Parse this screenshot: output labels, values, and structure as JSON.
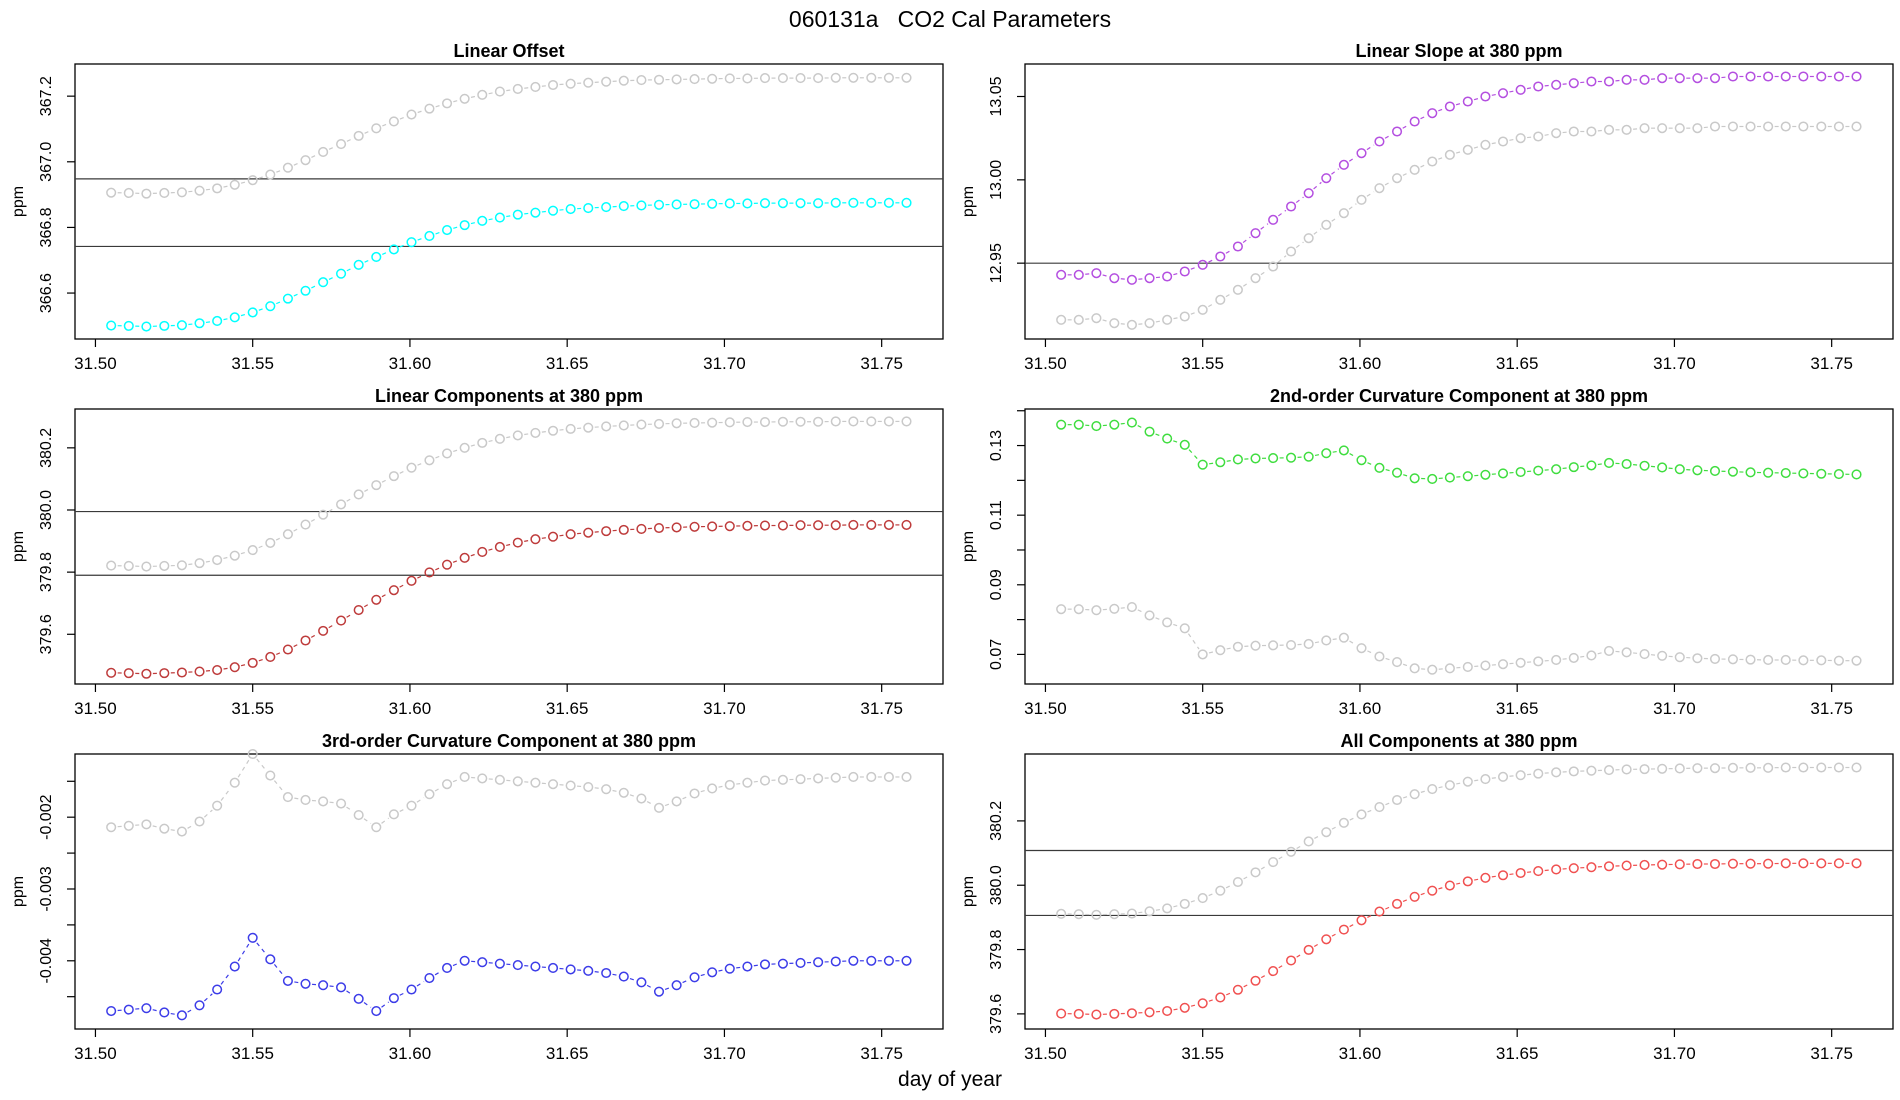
{
  "chart_data": {
    "type": "scatter",
    "main_title": "060131a   CO2 Cal Parameters",
    "xlabel": "day of year",
    "legend_position": "none",
    "grid": false,
    "marker": "open-circle",
    "line_style": "dashed",
    "xlim": [
      31.4935,
      31.7695
    ],
    "xticks": [
      31.5,
      31.55,
      31.6,
      31.65,
      31.7,
      31.75
    ],
    "xtick_labels": [
      "31.50",
      "31.55",
      "31.60",
      "31.65",
      "31.70",
      "31.75"
    ],
    "x": [
      31.505,
      31.5106,
      31.5162,
      31.5219,
      31.5275,
      31.5331,
      31.5387,
      31.5443,
      31.55,
      31.5556,
      31.5612,
      31.5668,
      31.5724,
      31.5781,
      31.5837,
      31.5893,
      31.5949,
      31.6005,
      31.6062,
      31.6118,
      31.6174,
      31.623,
      31.6286,
      31.6343,
      31.6399,
      31.6455,
      31.6511,
      31.6567,
      31.6624,
      31.668,
      31.6736,
      31.6792,
      31.6848,
      31.6905,
      31.6961,
      31.7017,
      31.7073,
      31.7129,
      31.7186,
      31.7242,
      31.7298,
      31.7354,
      31.741,
      31.7467,
      31.7523,
      31.7579
    ],
    "panels": [
      {
        "title": "Linear Offset",
        "ylabel": "ppm",
        "ylim": [
          366.46,
          367.298
        ],
        "yticks": [
          {
            "v": 367.2,
            "label": "367.2"
          },
          {
            "v": 367.0,
            "label": "367.0"
          },
          {
            "v": 366.8,
            "label": "366.8"
          },
          {
            "v": 366.6,
            "label": "366.6"
          }
        ],
        "minor_yticks": [],
        "hlines": [
          366.948,
          366.742
        ],
        "series": [
          {
            "color_name": "gray",
            "color": "#C9C9C9",
            "values": [
              366.906,
              366.905,
              366.903,
              366.905,
              366.907,
              366.912,
              366.919,
              366.93,
              366.944,
              366.961,
              366.982,
              367.005,
              367.03,
              367.054,
              367.079,
              367.102,
              367.123,
              367.144,
              367.162,
              367.178,
              367.192,
              367.204,
              367.214,
              367.222,
              367.228,
              367.234,
              367.238,
              367.241,
              367.244,
              367.247,
              367.249,
              367.25,
              367.251,
              367.252,
              367.253,
              367.254,
              367.254,
              367.255,
              367.255,
              367.255,
              367.255,
              367.256,
              367.256,
              367.256,
              367.256,
              367.256
            ]
          },
          {
            "color_name": "cyan",
            "color": "#00FFFF",
            "values": [
              366.501,
              366.5,
              366.498,
              366.5,
              366.502,
              366.508,
              366.515,
              366.526,
              366.541,
              366.56,
              366.583,
              366.607,
              366.633,
              366.659,
              366.686,
              366.71,
              366.733,
              366.755,
              366.774,
              366.792,
              366.807,
              366.82,
              366.83,
              366.839,
              366.845,
              366.851,
              366.856,
              366.859,
              366.862,
              366.865,
              366.867,
              366.869,
              366.87,
              366.871,
              366.872,
              366.873,
              366.873,
              366.874,
              366.874,
              366.874,
              366.874,
              366.875,
              366.875,
              366.875,
              366.875,
              366.875
            ]
          }
        ]
      },
      {
        "title": "Linear Slope at 380 ppm",
        "ylabel": "ppm",
        "ylim": [
          12.9045,
          13.0695
        ],
        "yticks": [
          {
            "v": 13.05,
            "label": "13.05"
          },
          {
            "v": 13.0,
            "label": "13.00"
          },
          {
            "v": 12.95,
            "label": "12.95"
          }
        ],
        "minor_yticks": [],
        "hlines": [
          12.95
        ],
        "series": [
          {
            "color_name": "gray",
            "color": "#C9C9C9",
            "values": [
              12.916,
              12.916,
              12.917,
              12.914,
              12.913,
              12.914,
              12.916,
              12.918,
              12.922,
              12.928,
              12.934,
              12.941,
              12.948,
              12.957,
              12.965,
              12.973,
              12.98,
              12.988,
              12.995,
              13.001,
              13.006,
              13.011,
              13.015,
              13.018,
              13.021,
              13.023,
              13.025,
              13.026,
              13.028,
              13.029,
              13.029,
              13.03,
              13.03,
              13.031,
              13.031,
              13.031,
              13.031,
              13.032,
              13.032,
              13.032,
              13.032,
              13.032,
              13.032,
              13.032,
              13.032,
              13.032
            ]
          },
          {
            "color_name": "purple",
            "color": "#B44FE0",
            "values": [
              12.943,
              12.943,
              12.944,
              12.941,
              12.94,
              12.941,
              12.942,
              12.945,
              12.949,
              12.954,
              12.96,
              12.968,
              12.976,
              12.984,
              12.992,
              13.001,
              13.009,
              13.016,
              13.023,
              13.029,
              13.035,
              13.04,
              13.044,
              13.047,
              13.05,
              13.052,
              13.054,
              13.056,
              13.057,
              13.058,
              13.059,
              13.059,
              13.06,
              13.06,
              13.061,
              13.061,
              13.061,
              13.061,
              13.062,
              13.062,
              13.062,
              13.062,
              13.062,
              13.062,
              13.062,
              13.062
            ]
          }
        ]
      },
      {
        "title": "Linear Components at 380 ppm",
        "ylabel": "ppm",
        "ylim": [
          379.44,
          380.325
        ],
        "yticks": [
          {
            "v": 380.2,
            "label": "380.2"
          },
          {
            "v": 380.0,
            "label": "380.0"
          },
          {
            "v": 379.8,
            "label": "379.8"
          },
          {
            "v": 379.6,
            "label": "379.6"
          }
        ],
        "minor_yticks": [],
        "hlines": [
          379.995,
          379.79
        ],
        "series": [
          {
            "color_name": "gray",
            "color": "#C9C9C9",
            "values": [
              379.821,
              379.82,
              379.818,
              379.82,
              379.822,
              379.829,
              379.839,
              379.853,
              379.871,
              379.894,
              379.922,
              379.953,
              379.985,
              380.018,
              380.05,
              380.08,
              380.109,
              380.136,
              380.16,
              380.182,
              380.2,
              380.216,
              380.229,
              380.24,
              380.248,
              380.255,
              380.261,
              380.265,
              380.269,
              380.272,
              380.275,
              380.277,
              380.279,
              380.28,
              380.281,
              380.282,
              380.283,
              380.283,
              380.284,
              380.284,
              380.284,
              380.285,
              380.285,
              380.285,
              380.285,
              380.285
            ]
          },
          {
            "color_name": "dark-red",
            "color": "#BE3B3B",
            "values": [
              379.476,
              379.475,
              379.473,
              379.475,
              379.477,
              379.48,
              379.485,
              379.494,
              379.508,
              379.527,
              379.551,
              379.58,
              379.611,
              379.644,
              379.678,
              379.711,
              379.742,
              379.772,
              379.799,
              379.824,
              379.846,
              379.865,
              379.881,
              379.895,
              379.906,
              379.914,
              379.922,
              379.927,
              379.932,
              379.936,
              379.939,
              379.942,
              379.944,
              379.946,
              379.947,
              379.948,
              379.949,
              379.95,
              379.95,
              379.951,
              379.951,
              379.951,
              379.952,
              379.952,
              379.952,
              379.952
            ]
          }
        ]
      },
      {
        "title": "2nd-order Curvature Component at 380 ppm",
        "ylabel": "ppm",
        "ylim": [
          0.0615,
          0.1405
        ],
        "yticks": [
          {
            "v": 0.13,
            "label": "0.13"
          },
          {
            "v": 0.11,
            "label": "0.11"
          },
          {
            "v": 0.09,
            "label": "0.09"
          },
          {
            "v": 0.07,
            "label": "0.07"
          }
        ],
        "minor_yticks": [
          0.14,
          0.12,
          0.1,
          0.08
        ],
        "hlines": [],
        "series": [
          {
            "color_name": "gray",
            "color": "#C9C9C9",
            "values": [
              0.083,
              0.083,
              0.0827,
              0.0831,
              0.0836,
              0.0812,
              0.0792,
              0.0775,
              0.07,
              0.0712,
              0.0722,
              0.0725,
              0.0726,
              0.0727,
              0.073,
              0.074,
              0.0748,
              0.0718,
              0.0694,
              0.0678,
              0.066,
              0.0656,
              0.066,
              0.0664,
              0.0668,
              0.0672,
              0.0676,
              0.068,
              0.0684,
              0.069,
              0.0697,
              0.071,
              0.0706,
              0.0701,
              0.0696,
              0.0692,
              0.0689,
              0.0687,
              0.0686,
              0.0685,
              0.0684,
              0.0684,
              0.0683,
              0.0683,
              0.0682,
              0.0682
            ]
          },
          {
            "color_name": "green",
            "color": "#3FDD3F",
            "values": [
              0.136,
              0.136,
              0.1356,
              0.136,
              0.1366,
              0.134,
              0.132,
              0.1302,
              0.1245,
              0.1252,
              0.126,
              0.1263,
              0.1264,
              0.1265,
              0.1268,
              0.1278,
              0.1286,
              0.1258,
              0.1236,
              0.1222,
              0.1206,
              0.1204,
              0.1208,
              0.1212,
              0.1216,
              0.122,
              0.1224,
              0.1228,
              0.1232,
              0.1238,
              0.1243,
              0.125,
              0.1247,
              0.1242,
              0.1237,
              0.1232,
              0.1229,
              0.1227,
              0.1225,
              0.1223,
              0.1222,
              0.1221,
              0.122,
              0.1219,
              0.1218,
              0.1217
            ]
          }
        ]
      },
      {
        "title": "3rd-order Curvature Component at 380 ppm",
        "ylabel": "ppm",
        "ylim": [
          -0.00495,
          -0.00112
        ],
        "yticks": [
          {
            "v": -0.002,
            "label": "-0.002"
          },
          {
            "v": -0.003,
            "label": "-0.003"
          },
          {
            "v": -0.004,
            "label": "-0.004"
          }
        ],
        "minor_yticks": [
          -0.0015,
          -0.0025,
          -0.0035,
          -0.0045
        ],
        "hlines": [],
        "series": [
          {
            "color_name": "gray",
            "color": "#C9C9C9",
            "values": [
              -0.00214,
              -0.00212,
              -0.0021,
              -0.00216,
              -0.0022,
              -0.00206,
              -0.00184,
              -0.00152,
              -0.00112,
              -0.00142,
              -0.00172,
              -0.00176,
              -0.00178,
              -0.00181,
              -0.00197,
              -0.00214,
              -0.00196,
              -0.00184,
              -0.00168,
              -0.00154,
              -0.00144,
              -0.00146,
              -0.00148,
              -0.0015,
              -0.00152,
              -0.00154,
              -0.00156,
              -0.00158,
              -0.00161,
              -0.00166,
              -0.00174,
              -0.00187,
              -0.00178,
              -0.00167,
              -0.0016,
              -0.00155,
              -0.00152,
              -0.00149,
              -0.00148,
              -0.00147,
              -0.00146,
              -0.00145,
              -0.00144,
              -0.00144,
              -0.00144,
              -0.00144
            ]
          },
          {
            "color_name": "blue",
            "color": "#3C3CE8",
            "values": [
              -0.0047,
              -0.00468,
              -0.00466,
              -0.00472,
              -0.00476,
              -0.00462,
              -0.0044,
              -0.00408,
              -0.00368,
              -0.00398,
              -0.00428,
              -0.00432,
              -0.00434,
              -0.00437,
              -0.00453,
              -0.0047,
              -0.00452,
              -0.0044,
              -0.00424,
              -0.0041,
              -0.004,
              -0.00402,
              -0.00404,
              -0.00406,
              -0.00408,
              -0.0041,
              -0.00412,
              -0.00414,
              -0.00417,
              -0.00422,
              -0.0043,
              -0.00443,
              -0.00434,
              -0.00423,
              -0.00416,
              -0.00411,
              -0.00408,
              -0.00405,
              -0.00404,
              -0.00403,
              -0.00402,
              -0.00401,
              -0.004,
              -0.004,
              -0.004,
              -0.004
            ]
          }
        ]
      },
      {
        "title": "All Components at 380 ppm",
        "ylabel": "ppm",
        "ylim": [
          379.553,
          380.408
        ],
        "yticks": [
          {
            "v": 380.2,
            "label": "380.2"
          },
          {
            "v": 380.0,
            "label": "380.0"
          },
          {
            "v": 379.8,
            "label": "379.8"
          },
          {
            "v": 379.6,
            "label": "379.6"
          }
        ],
        "minor_yticks": [],
        "hlines": [
          380.108,
          379.906
        ],
        "series": [
          {
            "color_name": "gray",
            "color": "#C9C9C9",
            "values": [
              379.911,
              379.91,
              379.908,
              379.91,
              379.912,
              379.919,
              379.928,
              379.942,
              379.96,
              379.983,
              380.01,
              380.04,
              380.072,
              380.104,
              380.136,
              380.165,
              380.194,
              380.22,
              380.243,
              380.265,
              380.283,
              380.299,
              380.311,
              380.322,
              380.33,
              380.337,
              380.342,
              380.347,
              380.351,
              380.354,
              380.356,
              380.358,
              380.36,
              380.361,
              380.362,
              380.363,
              380.364,
              380.364,
              380.365,
              380.365,
              380.365,
              380.366,
              380.366,
              380.366,
              380.366,
              380.366
            ]
          },
          {
            "color_name": "red",
            "color": "#F05050",
            "values": [
              379.601,
              379.6,
              379.598,
              379.6,
              379.602,
              379.605,
              379.609,
              379.619,
              379.633,
              379.651,
              379.675,
              379.703,
              379.733,
              379.766,
              379.799,
              379.832,
              379.862,
              379.891,
              379.918,
              379.942,
              379.964,
              379.983,
              379.999,
              380.012,
              380.023,
              380.031,
              380.038,
              380.044,
              380.049,
              380.053,
              380.056,
              380.059,
              380.061,
              380.063,
              380.064,
              380.065,
              380.066,
              380.066,
              380.067,
              380.067,
              380.067,
              380.068,
              380.068,
              380.068,
              380.068,
              380.068
            ]
          }
        ]
      }
    ]
  }
}
